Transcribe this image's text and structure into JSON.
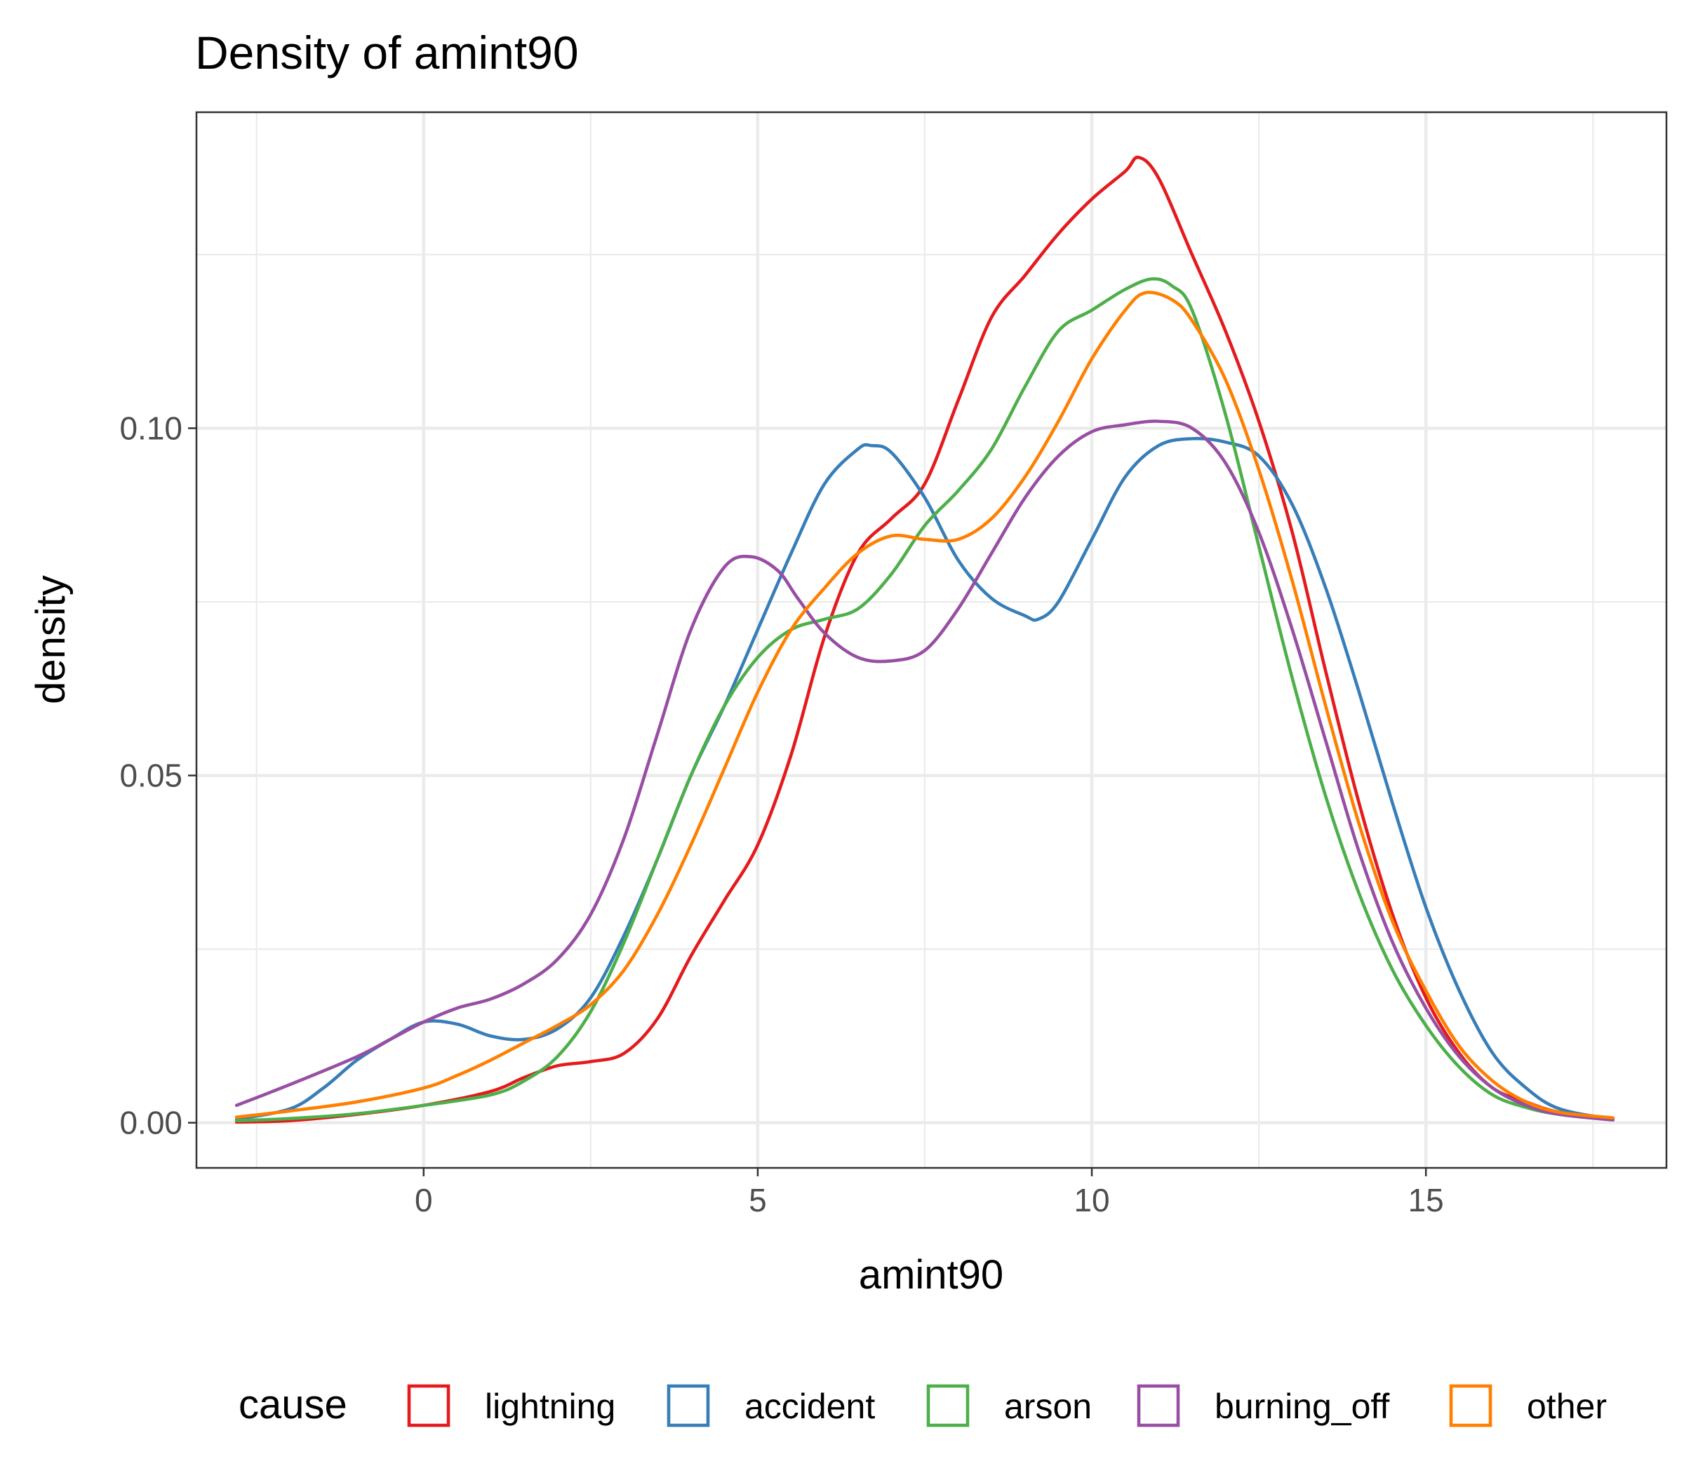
{
  "chart_data": {
    "type": "line",
    "title": "Density of amint90",
    "xlabel": "amint90",
    "ylabel": "density",
    "xlim": [
      -3.4,
      18.6
    ],
    "ylim": [
      -0.0065,
      0.1455
    ],
    "x_ticks": [
      0,
      5,
      10,
      15
    ],
    "x_tick_labels": [
      "0",
      "5",
      "10",
      "15"
    ],
    "y_ticks": [
      0.0,
      0.05,
      0.1
    ],
    "y_tick_labels": [
      "0.00",
      "0.05",
      "0.10"
    ],
    "grid": true,
    "legend": {
      "title": "cause",
      "position": "bottom"
    },
    "series": [
      {
        "name": "lightning",
        "color": "#E41A1C",
        "x": [
          -2.8,
          -2,
          -1,
          0,
          1,
          1.5,
          2,
          2.5,
          3,
          3.5,
          4,
          4.5,
          5,
          5.5,
          6,
          6.5,
          7,
          7.5,
          8,
          8.5,
          9,
          9.5,
          10,
          10.5,
          10.7,
          11,
          11.5,
          12,
          12.5,
          13,
          13.5,
          14,
          14.5,
          15,
          15.5,
          16,
          16.5,
          17,
          17.8
        ],
        "y": [
          0.0001,
          0.0003,
          0.0012,
          0.0025,
          0.0045,
          0.0065,
          0.0082,
          0.0088,
          0.01,
          0.015,
          0.024,
          0.032,
          0.04,
          0.053,
          0.07,
          0.082,
          0.087,
          0.092,
          0.104,
          0.116,
          0.122,
          0.128,
          0.133,
          0.137,
          0.139,
          0.136,
          0.125,
          0.114,
          0.101,
          0.085,
          0.065,
          0.046,
          0.03,
          0.018,
          0.01,
          0.005,
          0.003,
          0.0015,
          0.0006
        ]
      },
      {
        "name": "accident",
        "color": "#377EB8",
        "x": [
          -2.8,
          -2,
          -1.5,
          -1,
          -0.5,
          0,
          0.5,
          1,
          1.5,
          2,
          2.5,
          3,
          3.5,
          4,
          4.5,
          5,
          5.5,
          6,
          6.5,
          6.7,
          7,
          7.5,
          8,
          8.5,
          9,
          9.2,
          9.5,
          10,
          10.5,
          11,
          11.5,
          12,
          12.5,
          13,
          13.5,
          14,
          14.5,
          15,
          15.5,
          16,
          16.5,
          17,
          17.8
        ],
        "y": [
          0.0005,
          0.002,
          0.005,
          0.009,
          0.012,
          0.0145,
          0.0142,
          0.0125,
          0.012,
          0.0135,
          0.018,
          0.027,
          0.038,
          0.05,
          0.06,
          0.071,
          0.082,
          0.092,
          0.097,
          0.0975,
          0.0965,
          0.09,
          0.081,
          0.0755,
          0.073,
          0.0725,
          0.075,
          0.084,
          0.093,
          0.0975,
          0.0985,
          0.098,
          0.096,
          0.089,
          0.077,
          0.062,
          0.046,
          0.031,
          0.019,
          0.01,
          0.005,
          0.002,
          0.0005
        ]
      },
      {
        "name": "arson",
        "color": "#4DAF4A",
        "x": [
          -2.8,
          -2,
          -1,
          0,
          1,
          1.5,
          2,
          2.5,
          3,
          3.5,
          4,
          4.5,
          5,
          5.5,
          6,
          6.5,
          7,
          7.5,
          8,
          8.5,
          9,
          9.5,
          10,
          10.5,
          10.9,
          11.2,
          11.5,
          12,
          12.5,
          13,
          13.5,
          14,
          14.5,
          15,
          15.5,
          16,
          16.5,
          17,
          17.8
        ],
        "y": [
          0.0003,
          0.0006,
          0.0013,
          0.0025,
          0.004,
          0.006,
          0.0095,
          0.016,
          0.026,
          0.038,
          0.05,
          0.06,
          0.067,
          0.071,
          0.0725,
          0.074,
          0.079,
          0.086,
          0.091,
          0.097,
          0.106,
          0.114,
          0.117,
          0.12,
          0.1215,
          0.1205,
          0.117,
          0.102,
          0.083,
          0.064,
          0.047,
          0.033,
          0.022,
          0.014,
          0.008,
          0.004,
          0.0022,
          0.0012,
          0.0005
        ]
      },
      {
        "name": "burning_off",
        "color": "#984EA3",
        "x": [
          -2.8,
          -2,
          -1,
          -0.5,
          0,
          0.5,
          1,
          1.5,
          2,
          2.5,
          3,
          3.5,
          4,
          4.5,
          4.9,
          5.3,
          5.6,
          6,
          6.5,
          7,
          7.5,
          8,
          8.5,
          9,
          9.5,
          10,
          10.5,
          11,
          11.5,
          12,
          12.5,
          13,
          13.5,
          14,
          14.5,
          15,
          15.5,
          16,
          16.5,
          17,
          17.8
        ],
        "y": [
          0.0025,
          0.0055,
          0.0095,
          0.012,
          0.0145,
          0.0165,
          0.0178,
          0.02,
          0.0235,
          0.03,
          0.041,
          0.056,
          0.071,
          0.08,
          0.0815,
          0.0795,
          0.0755,
          0.0705,
          0.067,
          0.0665,
          0.068,
          0.074,
          0.082,
          0.09,
          0.096,
          0.0995,
          0.1005,
          0.101,
          0.1,
          0.095,
          0.085,
          0.071,
          0.055,
          0.039,
          0.026,
          0.0165,
          0.0095,
          0.005,
          0.0025,
          0.0012,
          0.0004
        ]
      },
      {
        "name": "other",
        "color": "#FF7F00",
        "x": [
          -2.8,
          -2,
          -1,
          0,
          0.5,
          1,
          1.5,
          2,
          2.5,
          3,
          3.5,
          4,
          4.5,
          5,
          5.5,
          6,
          6.5,
          7,
          7.5,
          8,
          8.5,
          9,
          9.5,
          10,
          10.5,
          10.8,
          11.2,
          11.5,
          12,
          12.5,
          13,
          13.5,
          14,
          14.5,
          15,
          15.5,
          16,
          16.5,
          17,
          17.8
        ],
        "y": [
          0.0008,
          0.0017,
          0.003,
          0.005,
          0.0068,
          0.009,
          0.0115,
          0.014,
          0.017,
          0.022,
          0.03,
          0.04,
          0.051,
          0.062,
          0.071,
          0.077,
          0.082,
          0.0845,
          0.084,
          0.084,
          0.087,
          0.093,
          0.101,
          0.11,
          0.117,
          0.1195,
          0.1185,
          0.1155,
          0.107,
          0.094,
          0.078,
          0.06,
          0.043,
          0.029,
          0.019,
          0.011,
          0.006,
          0.003,
          0.0015,
          0.0007
        ]
      }
    ]
  }
}
